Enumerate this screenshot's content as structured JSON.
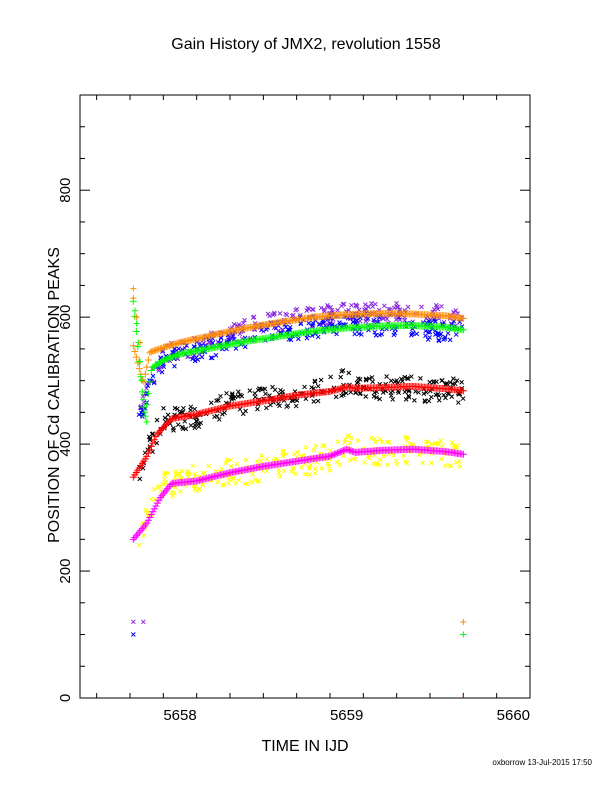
{
  "chart_data": {
    "type": "scatter",
    "title": "Gain History of JMX2, revolution 1558",
    "xlabel": "TIME IN IJD",
    "ylabel": "POSITION OF Cd CALIBRATION PEAKS",
    "xlim": [
      5657.4,
      5660.1
    ],
    "ylim": [
      0,
      950
    ],
    "x_ticks": [
      5658,
      5659,
      5660
    ],
    "y_ticks": [
      0,
      200,
      400,
      600,
      800
    ],
    "x_tick_labels": [
      "5658",
      "5659",
      "5660"
    ],
    "y_tick_labels": [
      "0",
      "200",
      "400",
      "600",
      "800"
    ],
    "grid": false,
    "series": [
      {
        "role": "fit",
        "color": "#ff8c00",
        "x": [
          5657.72,
          5657.78,
          5657.82,
          5657.9,
          5658.0,
          5658.2,
          5658.4,
          5658.6,
          5658.8,
          5659.0,
          5659.2,
          5659.4,
          5659.6,
          5659.7
        ],
        "values": [
          555,
          495,
          545,
          552,
          560,
          572,
          583,
          592,
          600,
          604,
          606,
          605,
          602,
          598
        ]
      },
      {
        "role": "fit",
        "color": "#00ff00",
        "x": [
          5657.72,
          5657.79,
          5657.83,
          5657.9,
          5658.0,
          5658.2,
          5658.4,
          5658.6,
          5658.8,
          5659.0,
          5659.2,
          5659.4,
          5659.6,
          5659.7
        ],
        "values": [
          625,
          440,
          520,
          532,
          542,
          552,
          562,
          570,
          578,
          583,
          586,
          587,
          584,
          580
        ]
      },
      {
        "role": "fit",
        "color": "#ff0000",
        "x": [
          5657.72,
          5657.8,
          5657.86,
          5657.95,
          5658.1,
          5658.3,
          5658.5,
          5658.7,
          5658.9,
          5659.0,
          5659.05,
          5659.2,
          5659.4,
          5659.6,
          5659.7
        ],
        "values": [
          348,
          380,
          415,
          440,
          447,
          460,
          468,
          477,
          483,
          490,
          488,
          489,
          491,
          487,
          484
        ]
      },
      {
        "role": "fit",
        "color": "#ff00ff",
        "x": [
          5657.72,
          5657.8,
          5657.88,
          5657.95,
          5658.1,
          5658.3,
          5658.5,
          5658.7,
          5658.9,
          5659.0,
          5659.05,
          5659.2,
          5659.4,
          5659.6,
          5659.7
        ],
        "values": [
          250,
          275,
          315,
          338,
          342,
          355,
          365,
          373,
          381,
          392,
          387,
          390,
          392,
          388,
          384
        ]
      },
      {
        "role": "raw",
        "color": "#8a2be2",
        "base": [
          [
            5657.75,
            455
          ],
          [
            5657.9,
            540
          ],
          [
            5658.1,
            555
          ],
          [
            5658.3,
            572
          ],
          [
            5658.5,
            590
          ],
          [
            5658.7,
            598
          ],
          [
            5658.9,
            604
          ],
          [
            5659.1,
            606
          ],
          [
            5659.3,
            606
          ],
          [
            5659.5,
            605
          ],
          [
            5659.7,
            600
          ]
        ],
        "spread": 16
      },
      {
        "role": "raw",
        "color": "#0000ff",
        "base": [
          [
            5657.75,
            445
          ],
          [
            5657.9,
            535
          ],
          [
            5658.1,
            548
          ],
          [
            5658.3,
            560
          ],
          [
            5658.5,
            575
          ],
          [
            5658.7,
            582
          ],
          [
            5658.9,
            588
          ],
          [
            5659.1,
            590
          ],
          [
            5659.3,
            588
          ],
          [
            5659.5,
            582
          ],
          [
            5659.7,
            575
          ]
        ],
        "spread": 18
      },
      {
        "role": "raw",
        "color": "#000000",
        "base": [
          [
            5657.75,
            360
          ],
          [
            5657.9,
            440
          ],
          [
            5658.1,
            445
          ],
          [
            5658.3,
            462
          ],
          [
            5658.5,
            472
          ],
          [
            5658.7,
            480
          ],
          [
            5658.9,
            487
          ],
          [
            5659.0,
            500
          ],
          [
            5659.2,
            490
          ],
          [
            5659.4,
            487
          ],
          [
            5659.7,
            485
          ]
        ],
        "spread": 20
      },
      {
        "role": "raw",
        "color": "#ffff00",
        "base": [
          [
            5657.75,
            255
          ],
          [
            5657.9,
            338
          ],
          [
            5658.1,
            345
          ],
          [
            5658.3,
            355
          ],
          [
            5658.5,
            363
          ],
          [
            5658.7,
            370
          ],
          [
            5658.9,
            380
          ],
          [
            5659.0,
            395
          ],
          [
            5659.2,
            388
          ],
          [
            5659.4,
            390
          ],
          [
            5659.7,
            382
          ]
        ],
        "spread": 22
      },
      {
        "role": "markers",
        "points": [
          {
            "x": 5657.72,
            "y": 120,
            "color": "#8a2be2"
          },
          {
            "x": 5657.72,
            "y": 100,
            "color": "#0000ff"
          },
          {
            "x": 5657.78,
            "y": 120,
            "color": "#8a2be2"
          },
          {
            "x": 5659.7,
            "y": 120,
            "color": "#ff8c00"
          },
          {
            "x": 5659.7,
            "y": 100,
            "color": "#00ff00"
          }
        ]
      }
    ]
  },
  "footer": "oxborrow 13-Jul-2015 17:50"
}
